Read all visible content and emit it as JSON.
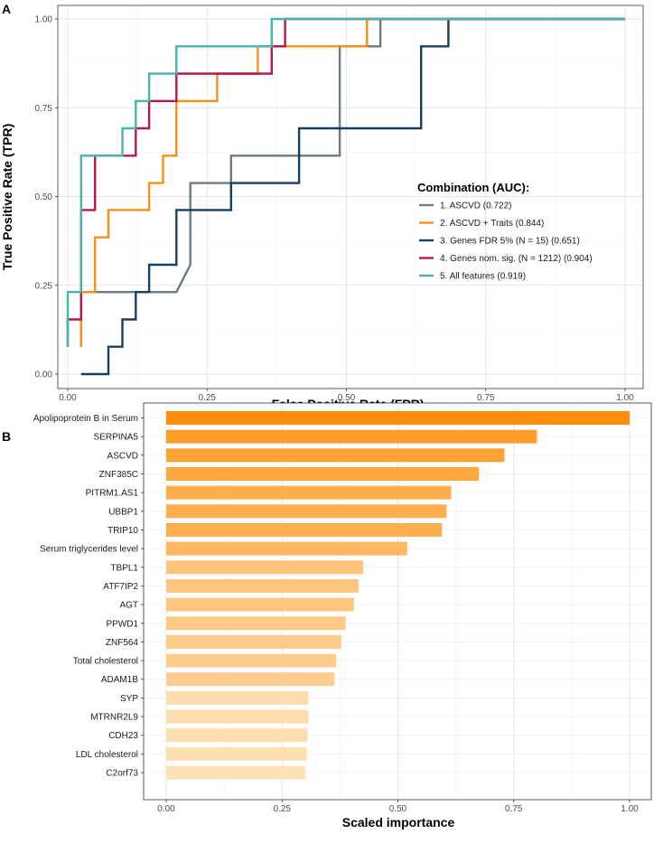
{
  "chart_data": [
    {
      "panel": "A",
      "type": "line",
      "step": true,
      "xlabel": "False Positive Rate (FPR)",
      "ylabel": "True Positive Rate (TPR)",
      "xlim": [
        0,
        1
      ],
      "ylim": [
        0,
        1
      ],
      "xticks": [
        "0.00",
        "0.25",
        "0.50",
        "0.75",
        "1.00"
      ],
      "yticks": [
        "0.00",
        "0.25",
        "0.50",
        "0.75",
        "1.00"
      ],
      "grid": true,
      "legend_title": "Combination (AUC):",
      "legend_position": "center-right",
      "series": [
        {
          "name": "1. ASCVD (0.722)",
          "color": "#6c7b84",
          "x": [
            0.024,
            0.024,
            0.195,
            0.22,
            0.22,
            0.293,
            0.293,
            0.488,
            0.488,
            0.561,
            0.561,
            1.0
          ],
          "y": [
            0.077,
            0.231,
            0.231,
            0.308,
            0.538,
            0.538,
            0.615,
            0.615,
            0.923,
            0.923,
            1.0,
            1.0
          ]
        },
        {
          "name": "2. ASCVD + Traits (0.844)",
          "color": "#f5901e",
          "x": [
            0.024,
            0.024,
            0.049,
            0.049,
            0.073,
            0.073,
            0.146,
            0.146,
            0.171,
            0.171,
            0.195,
            0.195,
            0.268,
            0.268,
            0.341,
            0.341,
            0.537,
            0.537,
            1.0
          ],
          "y": [
            0.077,
            0.231,
            0.231,
            0.385,
            0.385,
            0.462,
            0.462,
            0.538,
            0.538,
            0.615,
            0.615,
            0.769,
            0.769,
            0.846,
            0.846,
            0.923,
            0.923,
            1.0,
            1.0
          ]
        },
        {
          "name": "3. Genes FDR 5% (N = 15) (0.651)",
          "color": "#173f62",
          "x": [
            0.024,
            0.073,
            0.073,
            0.098,
            0.098,
            0.122,
            0.122,
            0.146,
            0.146,
            0.195,
            0.195,
            0.293,
            0.293,
            0.415,
            0.415,
            0.634,
            0.634,
            0.683,
            0.683,
            1.0
          ],
          "y": [
            0.0,
            0.0,
            0.077,
            0.077,
            0.154,
            0.154,
            0.231,
            0.231,
            0.308,
            0.308,
            0.462,
            0.462,
            0.538,
            0.538,
            0.692,
            0.692,
            0.923,
            0.923,
            1.0,
            1.0
          ]
        },
        {
          "name": "4. Genes nom. sig. (N = 1212) (0.904)",
          "color": "#b2194d",
          "x": [
            0.0,
            0.0,
            0.024,
            0.024,
            0.049,
            0.049,
            0.122,
            0.122,
            0.146,
            0.146,
            0.195,
            0.195,
            0.366,
            0.366,
            0.39,
            0.39,
            1.0
          ],
          "y": [
            0.077,
            0.154,
            0.154,
            0.462,
            0.462,
            0.615,
            0.615,
            0.692,
            0.692,
            0.769,
            0.769,
            0.846,
            0.846,
            0.923,
            0.923,
            1.0,
            1.0
          ]
        },
        {
          "name": "5. All features (0.919)",
          "color": "#47b5b1",
          "x": [
            0.0,
            0.0,
            0.024,
            0.024,
            0.098,
            0.098,
            0.122,
            0.122,
            0.146,
            0.146,
            0.195,
            0.195,
            0.366,
            0.366,
            1.0
          ],
          "y": [
            0.077,
            0.231,
            0.231,
            0.615,
            0.615,
            0.692,
            0.692,
            0.769,
            0.769,
            0.846,
            0.846,
            0.923,
            0.923,
            1.0,
            1.0
          ]
        }
      ]
    },
    {
      "panel": "B",
      "type": "bar",
      "orientation": "horizontal",
      "xlabel": "Scaled importance",
      "ylabel": "",
      "xlim": [
        0,
        1
      ],
      "xticks": [
        "0.00",
        "0.25",
        "0.50",
        "0.75",
        "1.00"
      ],
      "grid": true,
      "color_low": "#fde2b8",
      "color_high": "#fd8d0a",
      "categories": [
        "Apolipoprotein B in Serum",
        "SERPINA5",
        "ASCVD",
        "ZNF385C",
        "PITRM1.AS1",
        "UBBP1",
        "TRIP10",
        "Serum triglycerides level",
        "TBPL1",
        "ATF7IP2",
        "AGT",
        "PPWD1",
        "ZNF564",
        "Total cholesterol",
        "ADAM1B",
        "SYP",
        "MTRNR2L9",
        "CDH23",
        "LDL cholesterol",
        "C2orf73"
      ],
      "values": [
        1.0,
        0.8,
        0.73,
        0.675,
        0.615,
        0.605,
        0.595,
        0.52,
        0.425,
        0.415,
        0.405,
        0.387,
        0.378,
        0.367,
        0.363,
        0.307,
        0.307,
        0.305,
        0.303,
        0.3
      ]
    }
  ]
}
